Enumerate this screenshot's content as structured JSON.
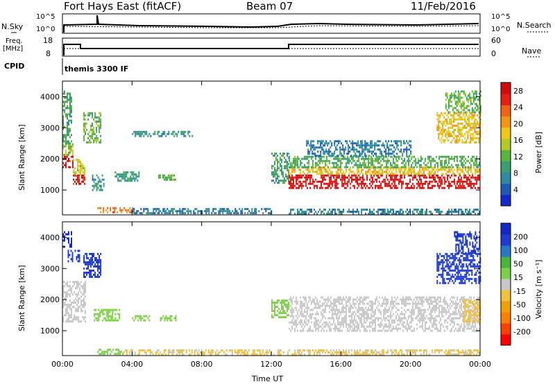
{
  "header": {
    "station": "Fort Hays East (fitACF)",
    "beam": "Beam 07",
    "date": "11/Feb/2016"
  },
  "panels_top": {
    "nsky_label": "N.Sky",
    "nsearch_label": "N.Search",
    "nsky_ticks": [
      "10^5",
      "10^0"
    ],
    "nsearch_ticks": [
      "10^5",
      "10^0"
    ],
    "freq_label": "Freq.",
    "freq_unit": "[MHz]",
    "freq_ticks": [
      "18",
      "8"
    ],
    "nave_label": "Nave",
    "nave_ticks": [
      "60",
      "0"
    ],
    "cpid_label": "CPID",
    "cpid_value": "themis 3300 IF"
  },
  "colors": {
    "power": [
      "#1428d2",
      "#1e5ab4",
      "#2e8a9e",
      "#3a9e70",
      "#5ab43c",
      "#b4c828",
      "#f0c814",
      "#f09614",
      "#f06414",
      "#e81e14",
      "#d20a0a"
    ],
    "velocity": [
      "#ff0000",
      "#ff4000",
      "#ff8000",
      "#f0a000",
      "#f0c040",
      "#c8c8c8",
      "#7ed04a",
      "#4ab43c",
      "#2878c8",
      "#1e3cd2",
      "#1428c8"
    ]
  },
  "chart_data": [
    {
      "type": "heatmap",
      "title": "Power",
      "ylabel": "Slant Range [km]",
      "y_ticks": [
        1000,
        2000,
        3000,
        4000
      ],
      "ylim": [
        200,
        4500
      ],
      "x_ticks": [
        "00:00",
        "04:00",
        "08:00",
        "12:00",
        "16:00",
        "20:00",
        "00:00"
      ],
      "xlim_hours": [
        0,
        24
      ],
      "colorbar": {
        "label": "Power [dB]",
        "ticks": [
          "4",
          "8",
          "12",
          "16",
          "20",
          "24",
          "28"
        ],
        "range": [
          0,
          30
        ]
      },
      "regions": [
        {
          "t": [
            0.0,
            0.6
          ],
          "r": [
            1700,
            2100
          ],
          "value": 27
        },
        {
          "t": [
            0.0,
            0.6
          ],
          "r": [
            2100,
            2500
          ],
          "value": 15
        },
        {
          "t": [
            0.0,
            0.5
          ],
          "r": [
            2500,
            4200
          ],
          "value": 10
        },
        {
          "t": [
            0.6,
            1.3
          ],
          "r": [
            1200,
            1500
          ],
          "value": 26
        },
        {
          "t": [
            0.6,
            1.3
          ],
          "r": [
            1500,
            2000
          ],
          "value": 16
        },
        {
          "t": [
            1.7,
            2.4
          ],
          "r": [
            1000,
            1500
          ],
          "value": 8
        },
        {
          "t": [
            1.2,
            2.2
          ],
          "r": [
            2500,
            3500
          ],
          "value": 12
        },
        {
          "t": [
            3.0,
            4.4
          ],
          "r": [
            1300,
            1600
          ],
          "value": 9
        },
        {
          "t": [
            5.5,
            6.5
          ],
          "r": [
            1300,
            1500
          ],
          "value": 12
        },
        {
          "t": [
            4.0,
            7.5
          ],
          "r": [
            2700,
            2900
          ],
          "value": 8
        },
        {
          "t": [
            2.0,
            4.0
          ],
          "r": [
            250,
            450
          ],
          "value": 22
        },
        {
          "t": [
            4.0,
            12.0
          ],
          "r": [
            230,
            420
          ],
          "value": 6
        },
        {
          "t": [
            12.0,
            13.0
          ],
          "r": [
            1200,
            2200
          ],
          "value": 10
        },
        {
          "t": [
            13.0,
            24.0
          ],
          "r": [
            1050,
            1500
          ],
          "value": 28
        },
        {
          "t": [
            13.0,
            24.0
          ],
          "r": [
            1500,
            1750
          ],
          "value": 18
        },
        {
          "t": [
            13.0,
            24.0
          ],
          "r": [
            1750,
            2100
          ],
          "value": 11
        },
        {
          "t": [
            14.0,
            20.0
          ],
          "r": [
            2100,
            2600
          ],
          "value": 6
        },
        {
          "t": [
            21.5,
            24.0
          ],
          "r": [
            2500,
            3500
          ],
          "value": 18
        },
        {
          "t": [
            22.0,
            24.0
          ],
          "r": [
            3500,
            4200
          ],
          "value": 12
        },
        {
          "t": [
            13.0,
            24.0
          ],
          "r": [
            230,
            400
          ],
          "value": 7
        }
      ]
    },
    {
      "type": "heatmap",
      "title": "Velocity",
      "ylabel": "Slant Range [km]",
      "y_ticks": [
        1000,
        2000,
        3000,
        4000
      ],
      "ylim": [
        200,
        4500
      ],
      "x_ticks": [
        "00:00",
        "04:00",
        "08:00",
        "12:00",
        "16:00",
        "20:00",
        "00:00"
      ],
      "xlim_hours": [
        0,
        24
      ],
      "xlabel": "Time UT",
      "colorbar": {
        "label": "Velocity [m s⁻¹]",
        "ticks": [
          "-200",
          "-100",
          "-50",
          "-15",
          "15",
          "50",
          "100",
          "200"
        ],
        "range": [
          -250,
          250
        ]
      },
      "regions": [
        {
          "t": [
            0.0,
            1.3
          ],
          "r": [
            1300,
            2600
          ],
          "value": 0
        },
        {
          "t": [
            0.0,
            0.5
          ],
          "r": [
            3700,
            4200
          ],
          "value": 220
        },
        {
          "t": [
            0.3,
            1.0
          ],
          "r": [
            3200,
            3600
          ],
          "value": 180
        },
        {
          "t": [
            1.2,
            2.2
          ],
          "r": [
            2700,
            3500
          ],
          "value": 200
        },
        {
          "t": [
            1.8,
            3.3
          ],
          "r": [
            1300,
            1700
          ],
          "value": 40
        },
        {
          "t": [
            4.0,
            5.0
          ],
          "r": [
            1300,
            1500
          ],
          "value": 40
        },
        {
          "t": [
            5.6,
            6.5
          ],
          "r": [
            1300,
            1500
          ],
          "value": 40
        },
        {
          "t": [
            2.0,
            3.5
          ],
          "r": [
            250,
            420
          ],
          "value": 40
        },
        {
          "t": [
            3.5,
            13.0
          ],
          "r": [
            220,
            400
          ],
          "value": -30
        },
        {
          "t": [
            12.0,
            13.0
          ],
          "r": [
            1400,
            2000
          ],
          "value": 40
        },
        {
          "t": [
            13.0,
            24.0
          ],
          "r": [
            1000,
            2100
          ],
          "value": 0
        },
        {
          "t": [
            13.0,
            24.0
          ],
          "r": [
            220,
            400
          ],
          "value": -30
        },
        {
          "t": [
            21.5,
            24.0
          ],
          "r": [
            2500,
            3500
          ],
          "value": 180
        },
        {
          "t": [
            22.5,
            24.0
          ],
          "r": [
            3500,
            4200
          ],
          "value": 200
        },
        {
          "t": [
            23.0,
            24.0
          ],
          "r": [
            1300,
            2000
          ],
          "value": -40
        }
      ]
    }
  ]
}
